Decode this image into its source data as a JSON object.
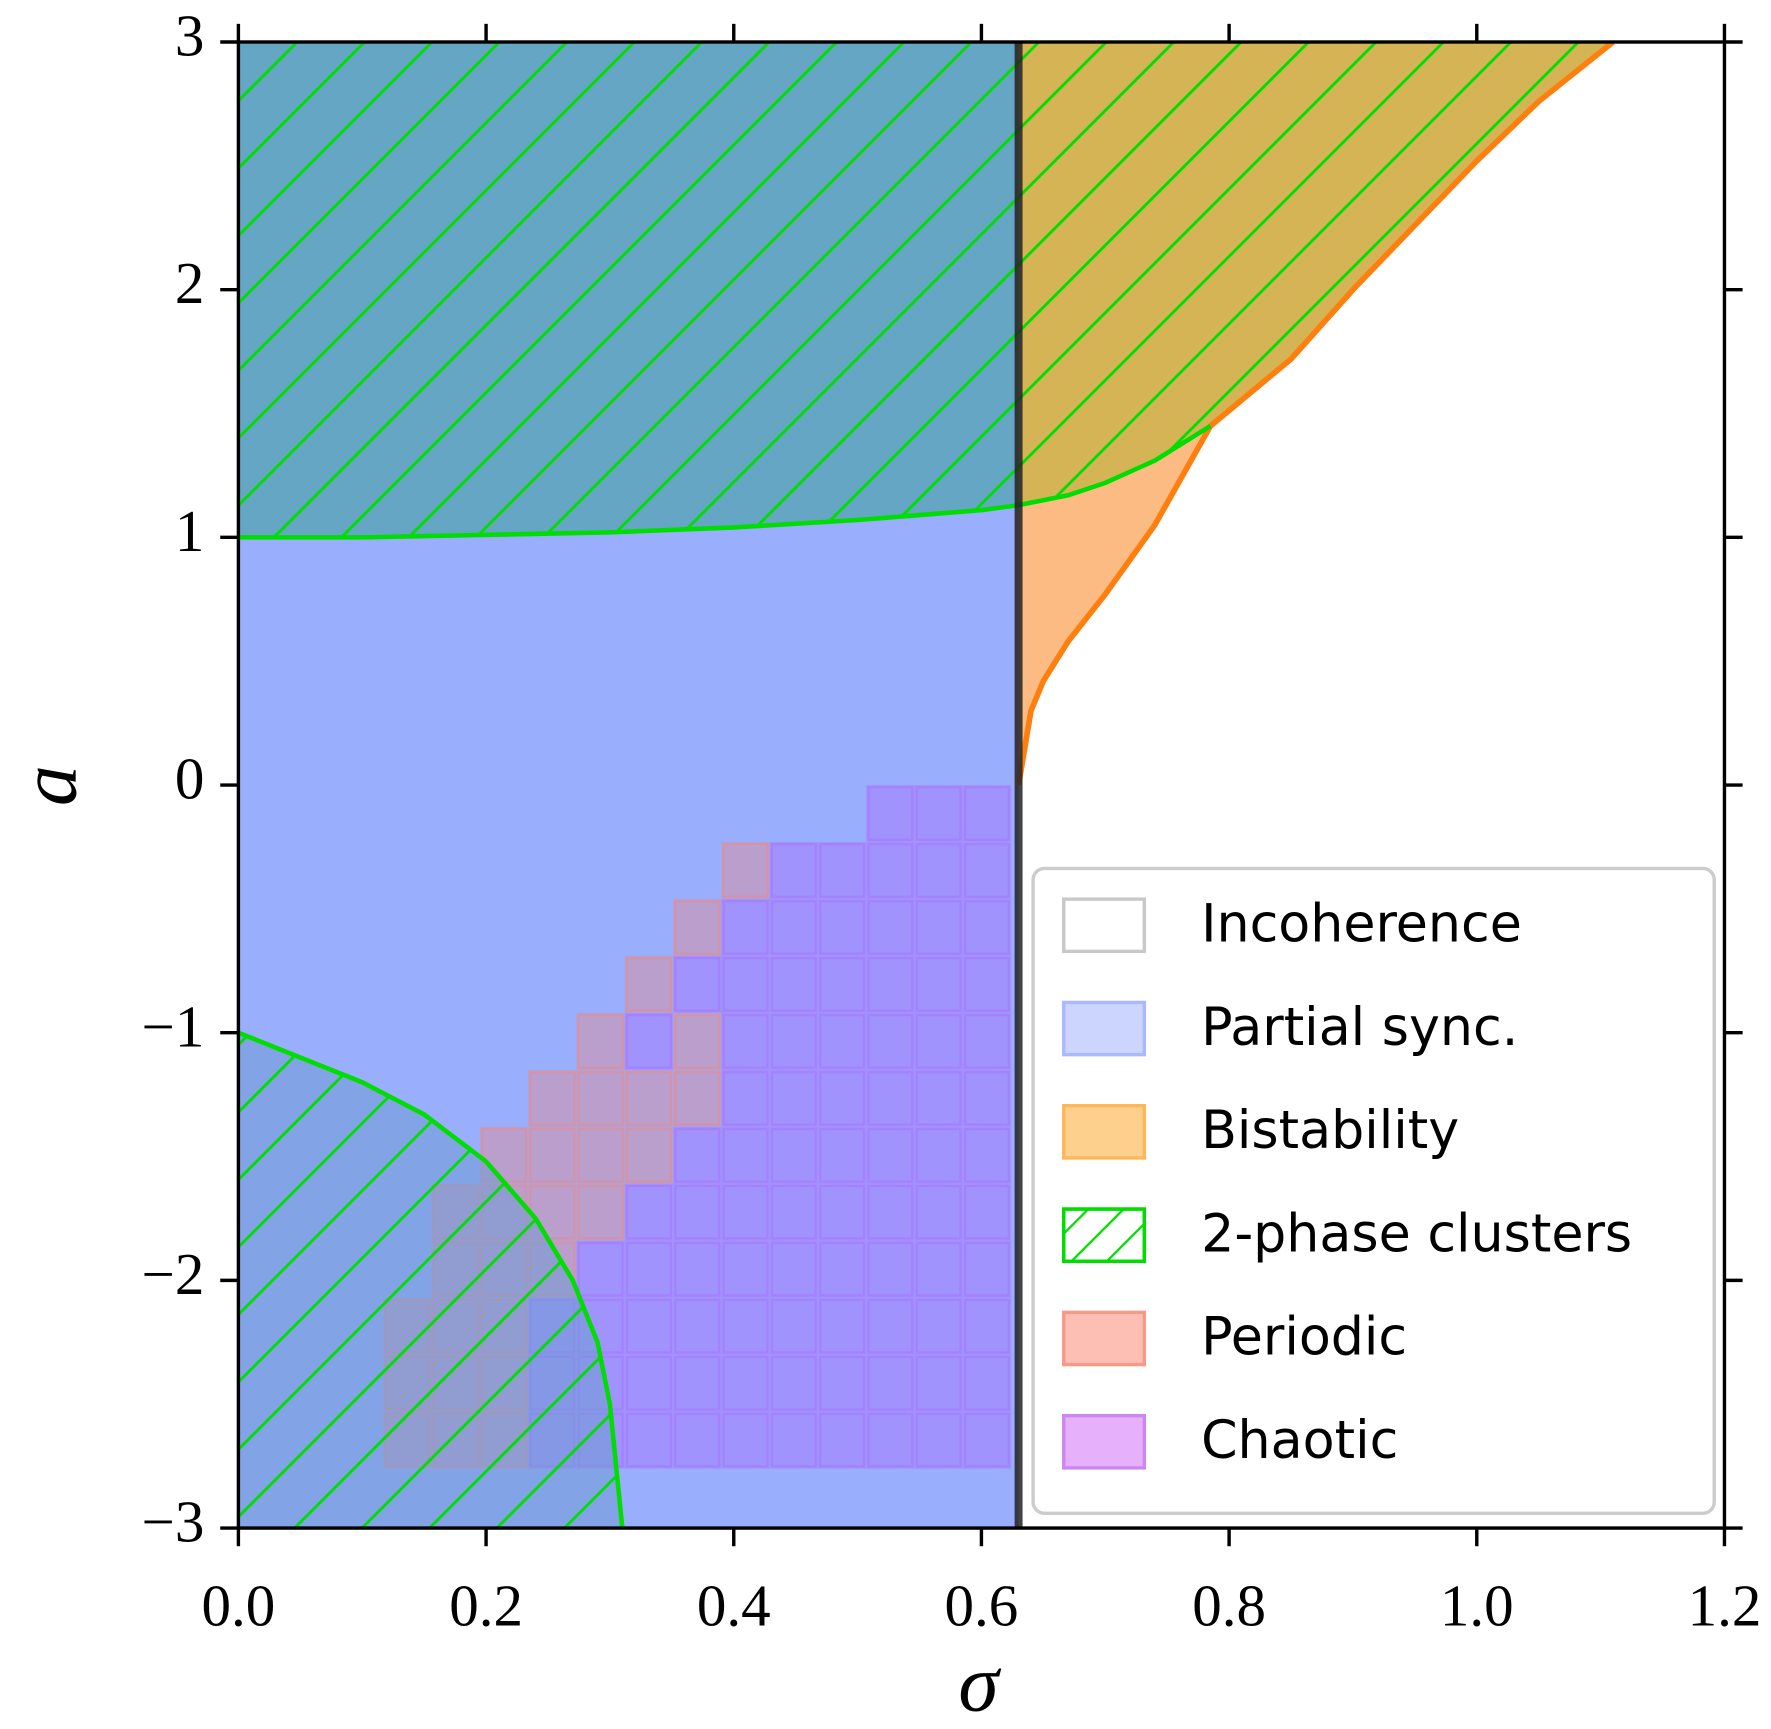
{
  "chart_data": {
    "type": "phase-diagram",
    "xlabel": "σ",
    "ylabel": "a",
    "xlim": [
      0,
      1.2
    ],
    "ylim": [
      -3,
      3
    ],
    "xticks": [
      {
        "value": 0,
        "label": "0.0"
      },
      0.2,
      0.4,
      0.6,
      0.8,
      {
        "value": 1,
        "label": "1.0"
      },
      1.2
    ],
    "yticks": [
      {
        "value": -3,
        "label": "−3"
      },
      {
        "value": -2,
        "label": "−2"
      },
      {
        "value": -1,
        "label": "−1"
      },
      0,
      1,
      2,
      3
    ],
    "sync_threshold": 0.63,
    "two_phase_upper": {
      "sigma": [
        0,
        0.1,
        0.2,
        0.3,
        0.4,
        0.5,
        0.55,
        0.6,
        0.63,
        0.67,
        0.7,
        0.74,
        0.785
      ],
      "a": [
        1,
        1.0,
        1.01,
        1.02,
        1.04,
        1.07,
        1.09,
        1.11,
        1.13,
        1.17,
        1.22,
        1.31,
        1.45
      ]
    },
    "bistability_edge": {
      "sigma": [
        0.63,
        0.635,
        0.64,
        0.65,
        0.67,
        0.7,
        0.74,
        0.785,
        0.85,
        0.9,
        0.95,
        1.0,
        1.05,
        1.11
      ],
      "a": [
        0,
        0.15,
        0.3,
        0.42,
        0.58,
        0.77,
        1.05,
        1.45,
        1.72,
        2.0,
        2.26,
        2.52,
        2.76,
        3
      ]
    },
    "two_phase_lower": {
      "sigma": [
        0,
        0.05,
        0.1,
        0.15,
        0.2,
        0.24,
        0.27,
        0.29,
        0.3,
        0.305,
        0.31
      ],
      "a": [
        -1,
        -1.1,
        -1.2,
        -1.33,
        -1.52,
        -1.75,
        -2.0,
        -2.25,
        -2.5,
        -2.75,
        -3
      ]
    },
    "cell_height": 0.23,
    "cell_rows": [
      {
        "a": -0.23,
        "periodic": [],
        "chaotic": [
          [
            0.507,
            0.624
          ]
        ]
      },
      {
        "a": -0.46,
        "periodic": [
          [
            0.39,
            0.429
          ]
        ],
        "chaotic": [
          [
            0.429,
            0.624
          ]
        ]
      },
      {
        "a": -0.69,
        "periodic": [
          [
            0.351,
            0.39
          ]
        ],
        "chaotic": [
          [
            0.39,
            0.624
          ]
        ]
      },
      {
        "a": -0.92,
        "periodic": [
          [
            0.312,
            0.351
          ]
        ],
        "chaotic": [
          [
            0.351,
            0.624
          ]
        ]
      },
      {
        "a": -1.15,
        "periodic": [
          [
            0.273,
            0.312
          ],
          [
            0.351,
            0.39
          ]
        ],
        "chaotic": [
          [
            0.312,
            0.351
          ],
          [
            0.39,
            0.624
          ]
        ]
      },
      {
        "a": -1.38,
        "periodic": [
          [
            0.234,
            0.39
          ]
        ],
        "chaotic": [
          [
            0.39,
            0.624
          ]
        ]
      },
      {
        "a": -1.61,
        "periodic": [
          [
            0.195,
            0.351
          ]
        ],
        "chaotic": [
          [
            0.351,
            0.624
          ]
        ]
      },
      {
        "a": -1.84,
        "periodic": [
          [
            0.156,
            0.312
          ]
        ],
        "chaotic": [
          [
            0.312,
            0.624
          ]
        ]
      },
      {
        "a": -2.07,
        "periodic": [
          [
            0.156,
            0.273
          ]
        ],
        "chaotic": [
          [
            0.273,
            0.624
          ]
        ]
      },
      {
        "a": -2.3,
        "periodic": [
          [
            0.117,
            0.234
          ]
        ],
        "chaotic": [
          [
            0.234,
            0.624
          ]
        ]
      },
      {
        "a": -2.53,
        "periodic": [
          [
            0.117,
            0.234
          ]
        ],
        "chaotic": [
          [
            0.234,
            0.624
          ]
        ]
      },
      {
        "a": -2.76,
        "periodic": [
          [
            0.117,
            0.234
          ]
        ],
        "chaotic": [
          [
            0.234,
            0.624
          ]
        ]
      }
    ],
    "region_colors": {
      "partial": "#99aefc",
      "two_phase_sync": "#64a6c4",
      "two_phase_bistable": "#d4b454",
      "bistable": "#fdbb84",
      "two_phase_lower": "#6f9cd4",
      "hatch": "#00dd00",
      "threshold": "#222222",
      "edge": "#ff7f0e"
    },
    "legend": [
      {
        "name": "Incoherence",
        "color": "#ffffff",
        "edge": "#c8c8c8"
      },
      {
        "name": "Partial sync.",
        "color": "#cbd5fd",
        "edge": "#a9b9fb"
      },
      {
        "name": "Bistability",
        "color": "#fed08d",
        "edge": "#fcb858"
      },
      {
        "name": "2-phase clusters",
        "color": "#ffffff",
        "edge": "#00dd00",
        "hatch": true
      },
      {
        "name": "Periodic",
        "color": "#fdbfb3",
        "edge": "#f59a88"
      },
      {
        "name": "Chaotic",
        "color": "#e6b0fa",
        "edge": "#cc88f0"
      }
    ],
    "periodic_color": "#fa8072",
    "chaotic_color": "#b060ff"
  }
}
